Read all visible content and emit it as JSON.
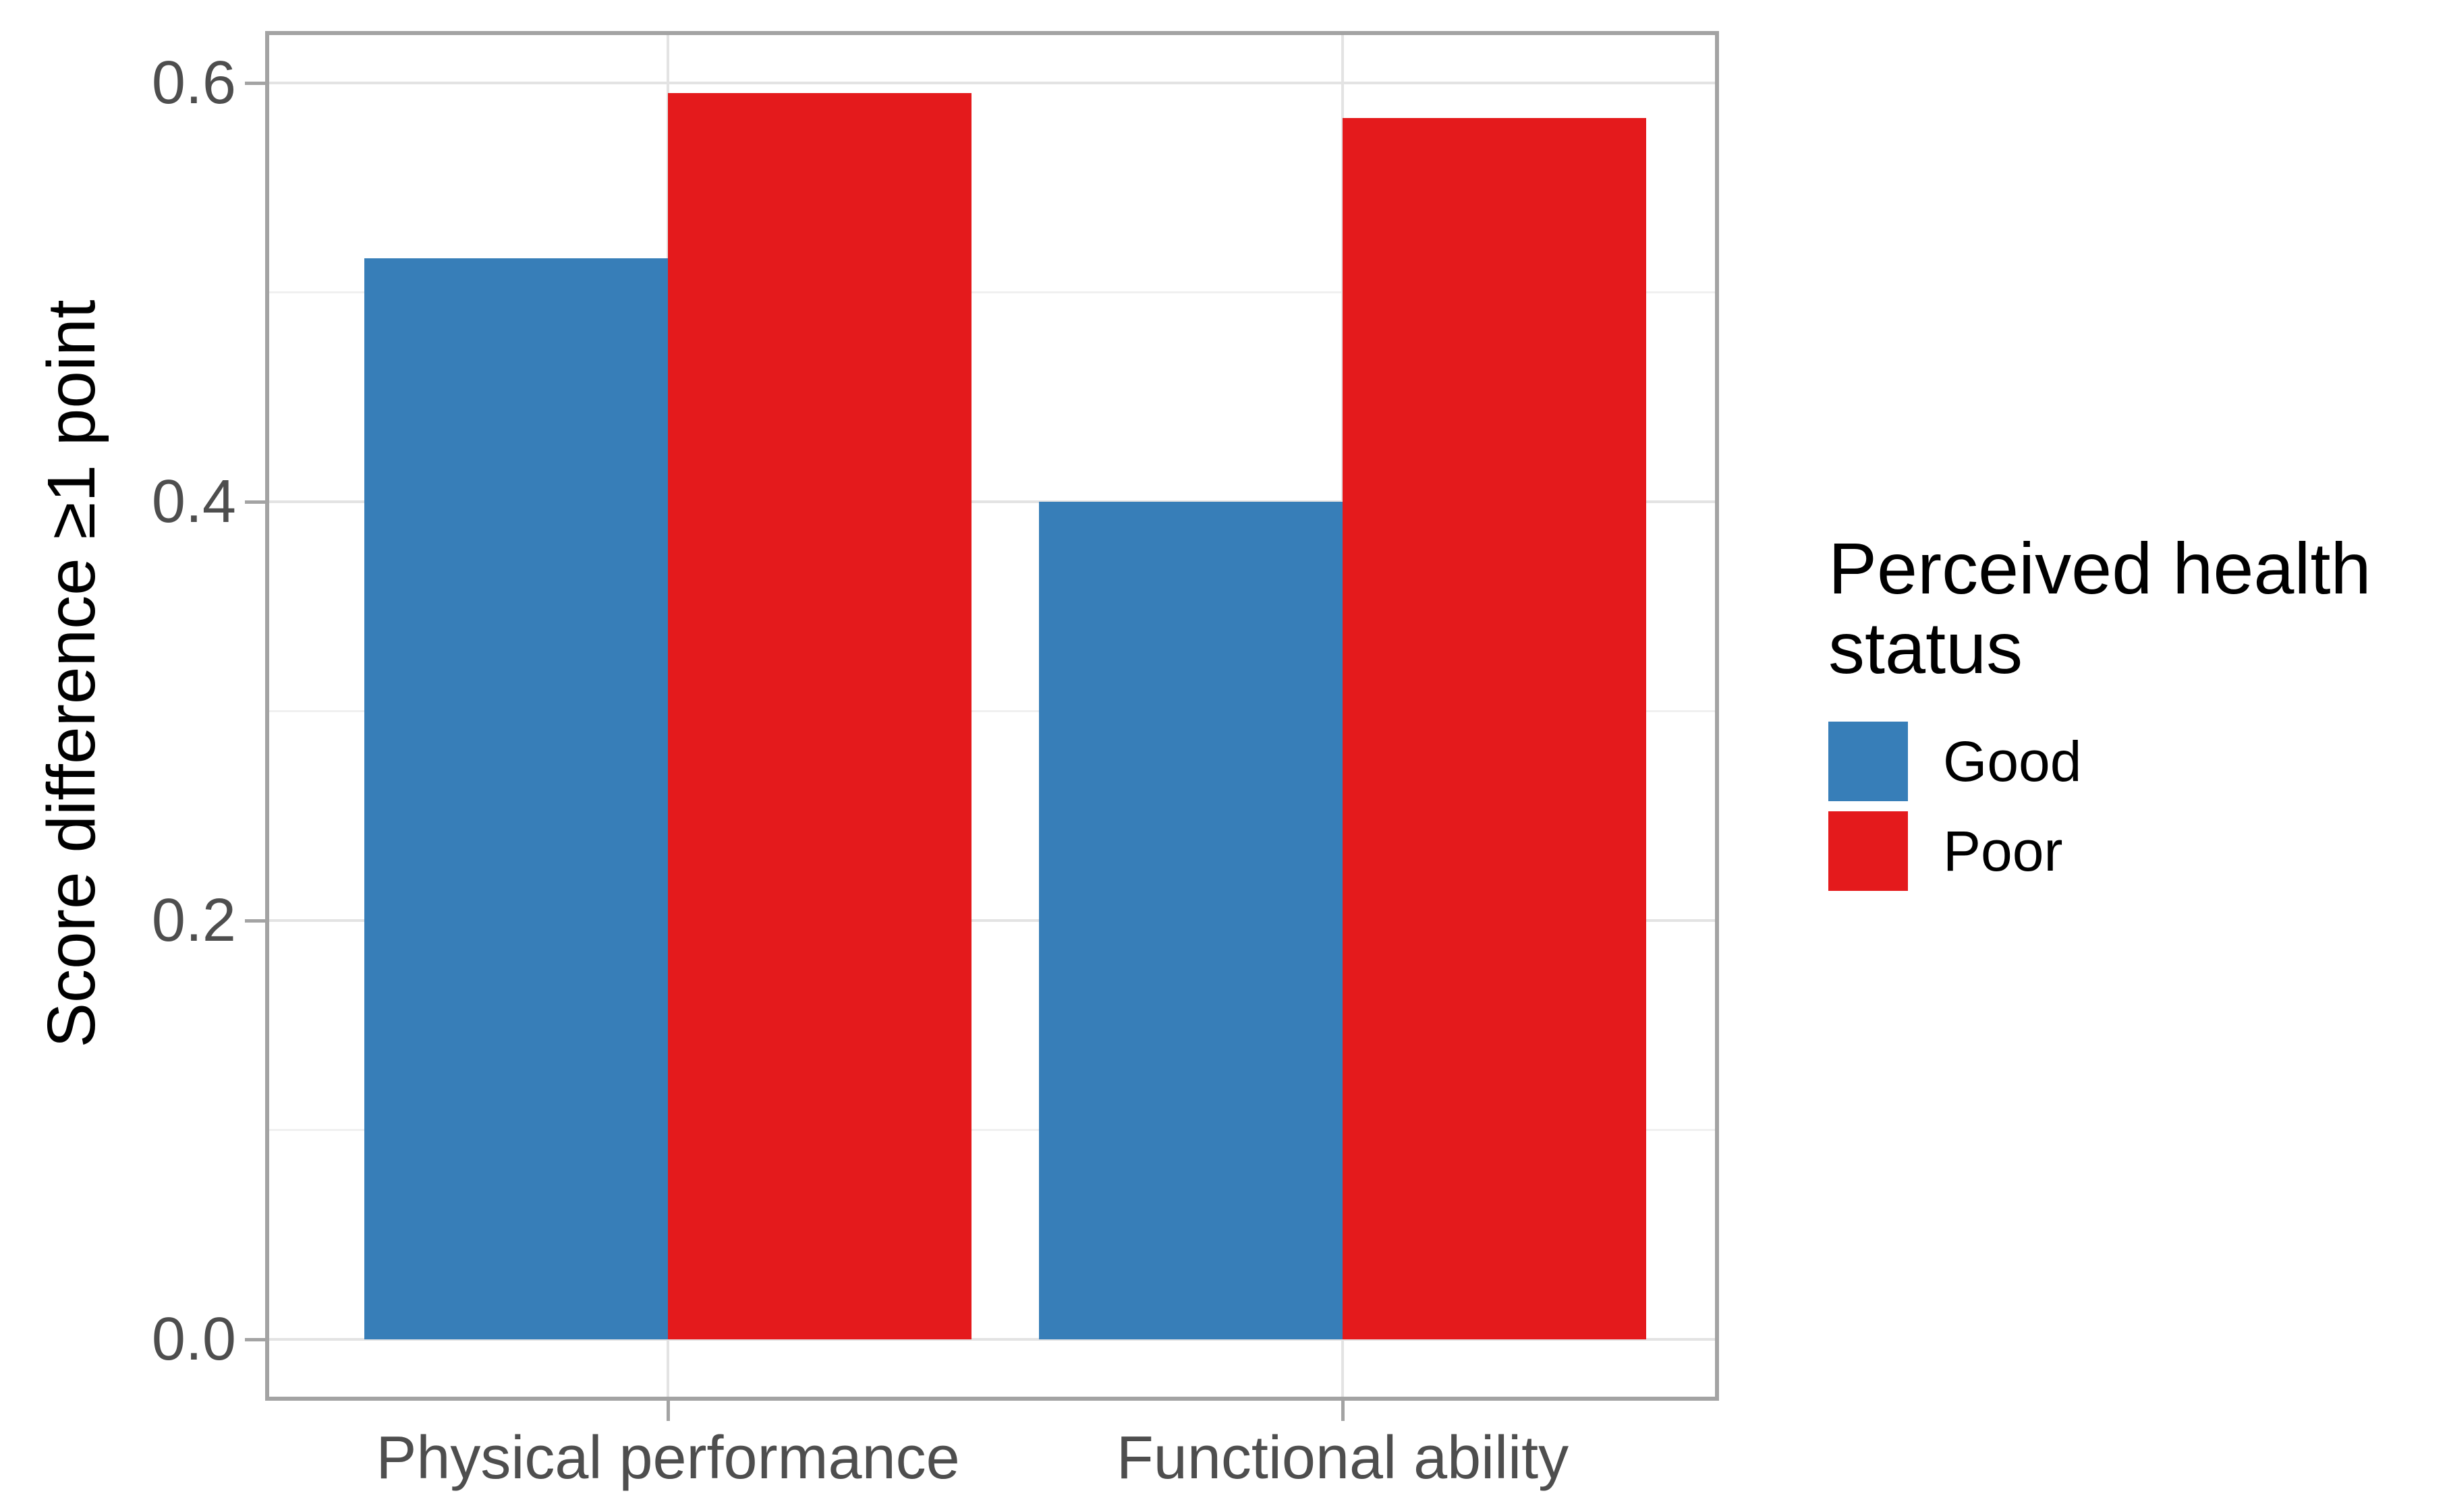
{
  "chart_data": {
    "type": "bar",
    "title": "",
    "categories": [
      "Physical performance",
      "Functional ability"
    ],
    "series": [
      {
        "name": "Good",
        "color": "#377EB8",
        "values": [
          0.516,
          0.4
        ]
      },
      {
        "name": "Poor",
        "color": "#E41A1C",
        "values": [
          0.595,
          0.583
        ]
      }
    ],
    "xlabel": "",
    "ylabel": "Score difference ≥1 point",
    "ylim": [
      0,
      0.6
    ],
    "yticks": [
      {
        "value": 0.0,
        "label": "0.0"
      },
      {
        "value": 0.2,
        "label": "0.2"
      },
      {
        "value": 0.4,
        "label": "0.4"
      },
      {
        "value": 0.6,
        "label": "0.6"
      }
    ],
    "yticks_minor": [
      0.1,
      0.3,
      0.5
    ],
    "grid": "horizontal major+minor light gray, vertical major at category centers",
    "legend_position": "right",
    "legend": {
      "title": "Perceived health status",
      "items": [
        {
          "label": "Good",
          "color": "#377EB8"
        },
        {
          "label": "Poor",
          "color": "#E41A1C"
        }
      ]
    },
    "colors": {
      "panel_border": "#a3a3a3",
      "grid_major": "#e3e3e3",
      "grid_minor": "#f0f0f0",
      "axis_text": "#4e4e4e"
    }
  }
}
